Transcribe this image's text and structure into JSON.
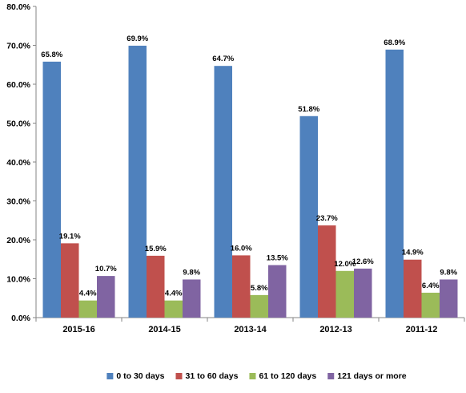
{
  "chart_data": {
    "type": "bar",
    "title": "",
    "xlabel": "",
    "ylabel": "",
    "ylim": [
      0,
      80
    ],
    "y_ticks": [
      0,
      10,
      20,
      30,
      40,
      50,
      60,
      70,
      80
    ],
    "y_tick_labels": [
      "0.0%",
      "10.0%",
      "20.0%",
      "30.0%",
      "40.0%",
      "50.0%",
      "60.0%",
      "70.0%",
      "80.0%"
    ],
    "grid": false,
    "legend_position": "bottom",
    "categories": [
      "2015-16",
      "2014-15",
      "2013-14",
      "2012-13",
      "2011-12"
    ],
    "series": [
      {
        "name": "0 to 30 days",
        "color": "#4F81BD",
        "values": [
          65.8,
          69.9,
          64.7,
          51.8,
          68.9
        ],
        "labels": [
          "65.8%",
          "69.9%",
          "64.7%",
          "51.8%",
          "68.9%"
        ]
      },
      {
        "name": "31 to 60 days",
        "color": "#C0504D",
        "values": [
          19.1,
          15.9,
          16.0,
          23.7,
          14.9
        ],
        "labels": [
          "19.1%",
          "15.9%",
          "16.0%",
          "23.7%",
          "14.9%"
        ]
      },
      {
        "name": "61 to 120 days",
        "color": "#9BBB59",
        "values": [
          4.4,
          4.4,
          5.8,
          12.0,
          6.4
        ],
        "labels": [
          "4.4%",
          "4.4%",
          "5.8%",
          "12.0%",
          "6.4%"
        ]
      },
      {
        "name": "121 days or more",
        "color": "#8064A2",
        "values": [
          10.7,
          9.8,
          13.5,
          12.6,
          9.8
        ],
        "labels": [
          "10.7%",
          "9.8%",
          "13.5%",
          "12.6%",
          "9.8%"
        ]
      }
    ]
  }
}
